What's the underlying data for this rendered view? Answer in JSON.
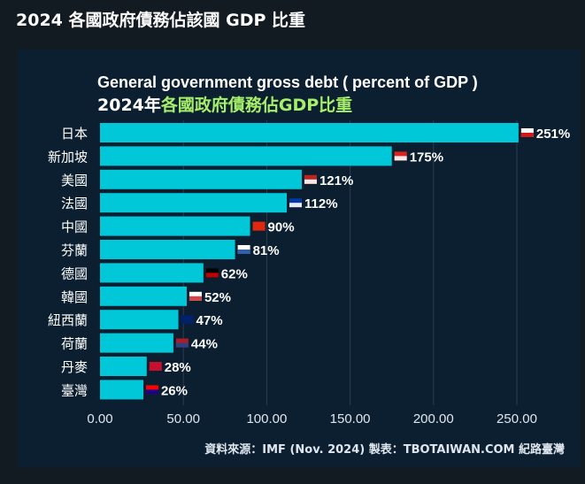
{
  "page": {
    "title": "2024 各國政府債務佔該國 GDP 比重"
  },
  "chart_data": {
    "type": "bar",
    "orientation": "horizontal",
    "title": "General government gross debt ( percent of GDP )",
    "subtitle_prefix": "2024年",
    "subtitle_highlight": "各國政府債務佔GDP比重",
    "categories": [
      "日本",
      "新加坡",
      "美國",
      "法國",
      "中國",
      "芬蘭",
      "德國",
      "韓國",
      "紐西蘭",
      "荷蘭",
      "丹麥",
      "臺灣"
    ],
    "values": [
      251,
      175,
      121,
      112,
      90,
      81,
      62,
      52,
      47,
      44,
      28,
      26
    ],
    "data_labels": [
      "251%",
      "175%",
      "121%",
      "112%",
      "90%",
      "81%",
      "62%",
      "52%",
      "47%",
      "44%",
      "28%",
      "26%"
    ],
    "flags": [
      "japan",
      "singapore",
      "usa",
      "france",
      "china",
      "finland",
      "germany",
      "korea",
      "new-zealand",
      "netherlands",
      "denmark",
      "taiwan"
    ],
    "xlim": [
      0,
      250
    ],
    "x_ticks": [
      "0.00",
      "50.00",
      "100.00",
      "150.00",
      "200.00",
      "250.00"
    ],
    "grid": true,
    "source": "資料來源：IMF (Nov. 2024)  製表：TBOTAIWAN.COM 紀路臺灣",
    "colors": {
      "bar": "#00c8d8",
      "highlight": "#a6ef6a",
      "background": "#0c1f30"
    }
  }
}
